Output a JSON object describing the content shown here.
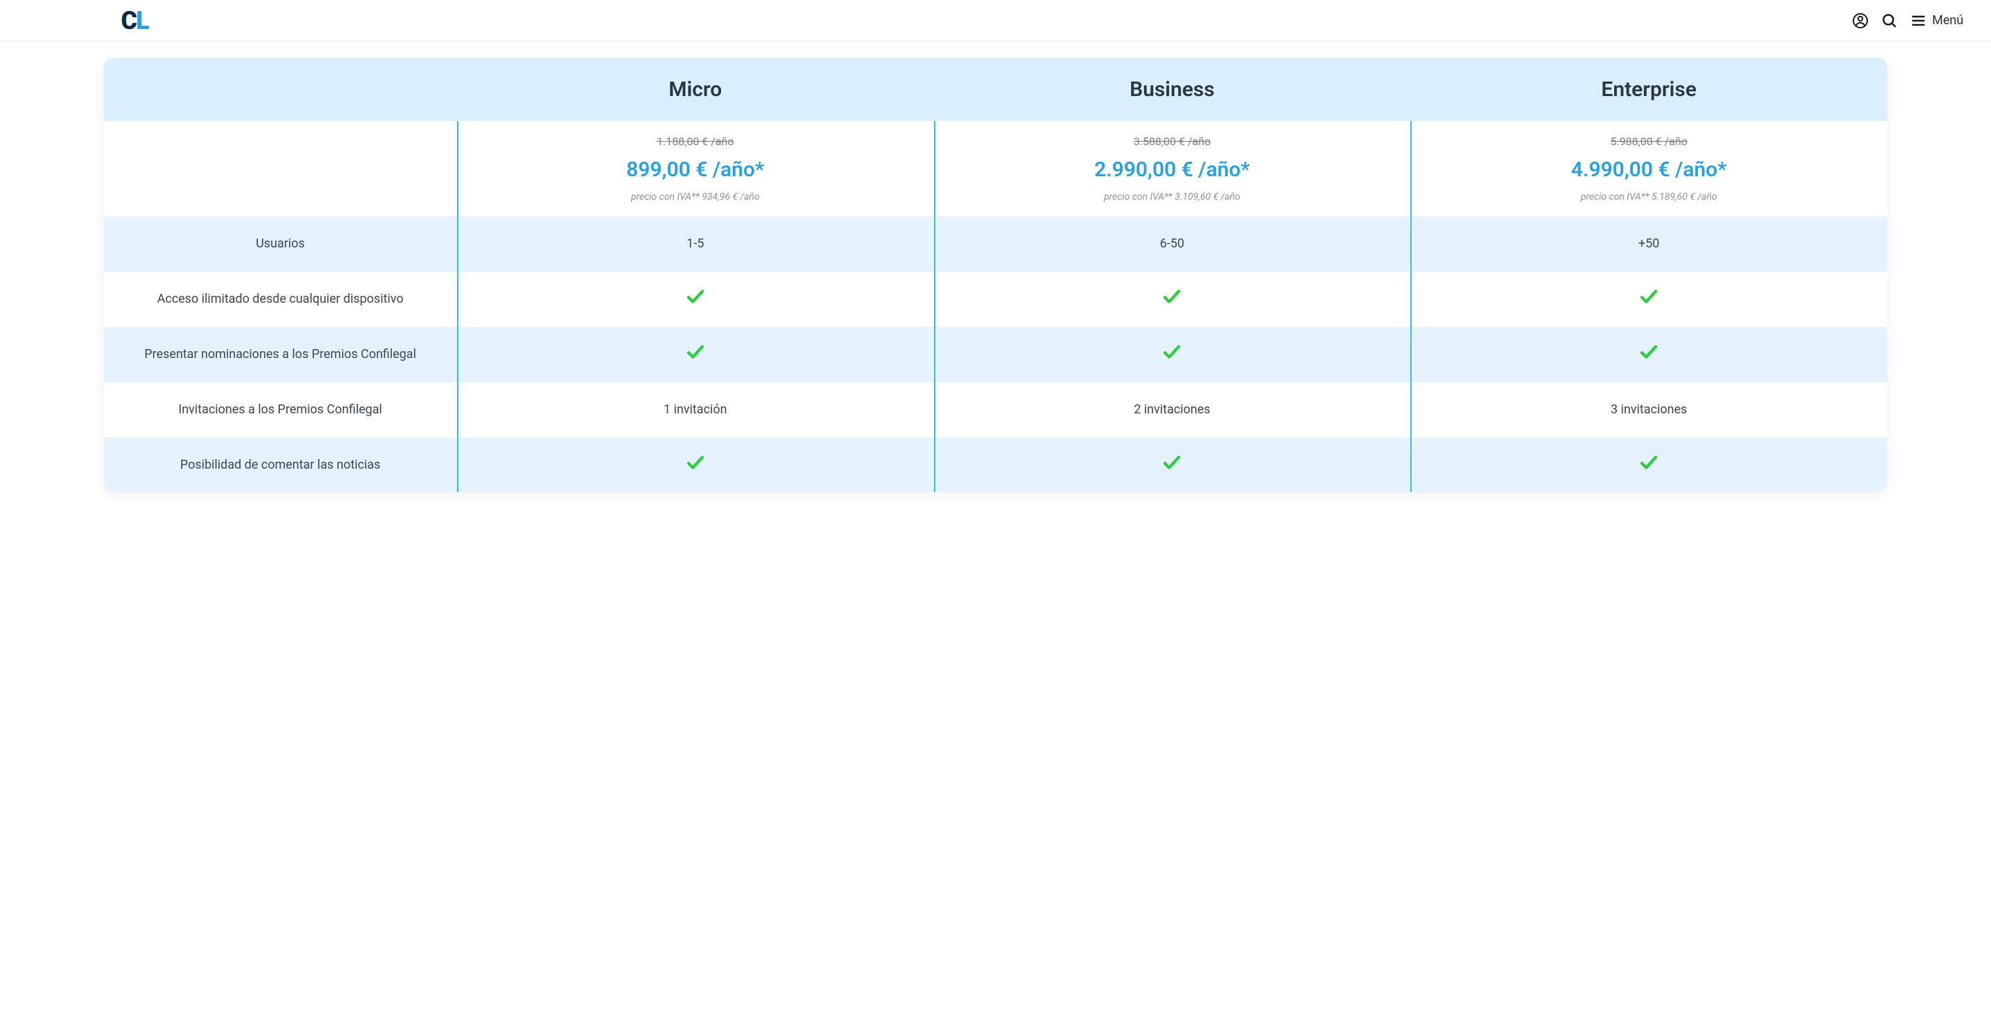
{
  "header": {
    "logo_c": "C",
    "logo_l": "L",
    "menu_label": "Menú"
  },
  "colors": {
    "accent": "#2aa0e0",
    "head_bg": "#d9efff",
    "row_alt_bg": "#e6f3ff",
    "divider": "#37bfe1",
    "check": "#2ecc40",
    "text_muted": "#8d9399",
    "logo_dark": "#0b2b4a",
    "logo_light": "#2aa0e0"
  },
  "pricing": {
    "plans": [
      {
        "name": "Micro",
        "old": "1.188,00 € /año",
        "price": "899,00 € /año*",
        "vat": "precio con IVA** 934,96 € /año"
      },
      {
        "name": "Business",
        "old": "3.588,00 € /año",
        "price": "2.990,00 € /año*",
        "vat": "precio con IVA** 3.109,60 € /año"
      },
      {
        "name": "Enterprise",
        "old": "5.988,00 € /año",
        "price": "4.990,00 € /año*",
        "vat": "precio con IVA** 5.189,60 € /año"
      }
    ],
    "rows": [
      {
        "label": "Usuarios",
        "values": [
          "1-5",
          "6-50",
          "+50"
        ],
        "alt": true
      },
      {
        "label": "Acceso ilimitado desde cualquier dispositivo",
        "values": [
          "check",
          "check",
          "check"
        ],
        "alt": false
      },
      {
        "label": "Presentar nominaciones a los Premios Confilegal",
        "values": [
          "check",
          "check",
          "check"
        ],
        "alt": true
      },
      {
        "label": "Invitaciones a los Premios Confilegal",
        "values": [
          "1 invitación",
          "2 invitaciones",
          "3 invitaciones"
        ],
        "alt": false
      },
      {
        "label": "Posibilidad de comentar las noticias",
        "values": [
          "check",
          "check",
          "check"
        ],
        "alt": true
      }
    ]
  }
}
